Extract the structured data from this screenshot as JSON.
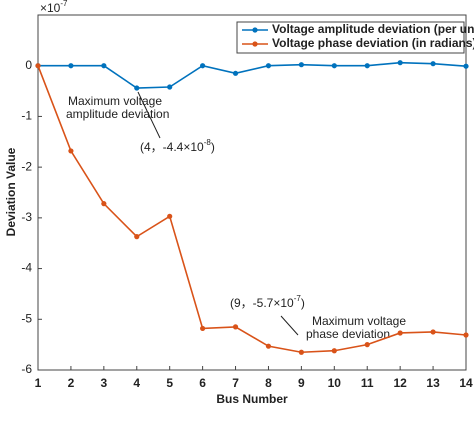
{
  "chart_data": {
    "type": "line",
    "xlabel": "Bus Number",
    "ylabel": "Deviation Value",
    "axis_multiplier": {
      "base": "×10",
      "exponent": "-7"
    },
    "x": [
      1,
      2,
      3,
      4,
      5,
      6,
      7,
      8,
      9,
      10,
      11,
      12,
      13,
      14
    ],
    "xlim": [
      1,
      14
    ],
    "xticks": [
      1,
      2,
      3,
      4,
      5,
      6,
      7,
      8,
      9,
      10,
      11,
      12,
      13,
      14
    ],
    "ylim": [
      -6,
      1
    ],
    "yticks": [
      0,
      -1,
      -2,
      -3,
      -4,
      -5,
      -6
    ],
    "legend": "upper right",
    "series": [
      {
        "name": "Voltage amplitude deviation (per unit value)",
        "color": "#0072bd",
        "values": [
          0,
          0,
          0,
          -0.44,
          -0.42,
          0,
          -0.15,
          0,
          0.02,
          0,
          0,
          0.06,
          0.04,
          -0.01
        ]
      },
      {
        "name": "Voltage phase deviation (in radians)",
        "color": "#d95319",
        "values": [
          0,
          -1.68,
          -2.72,
          -3.37,
          -2.97,
          -5.18,
          -5.15,
          -5.53,
          -5.65,
          -5.62,
          -5.5,
          -5.27,
          -5.25,
          -5.31
        ]
      }
    ],
    "annotations": [
      {
        "lines": [
          "Maximum voltage",
          "amplitude deviation"
        ]
      },
      {
        "prefix": "(4，-4.4×10",
        "exponent": "-8",
        "suffix": ")"
      },
      {
        "prefix": "(9，-5.7×10",
        "exponent": "-7",
        "suffix": ")"
      },
      {
        "lines": [
          "Maximum voltage",
          "phase deviation"
        ]
      }
    ]
  }
}
